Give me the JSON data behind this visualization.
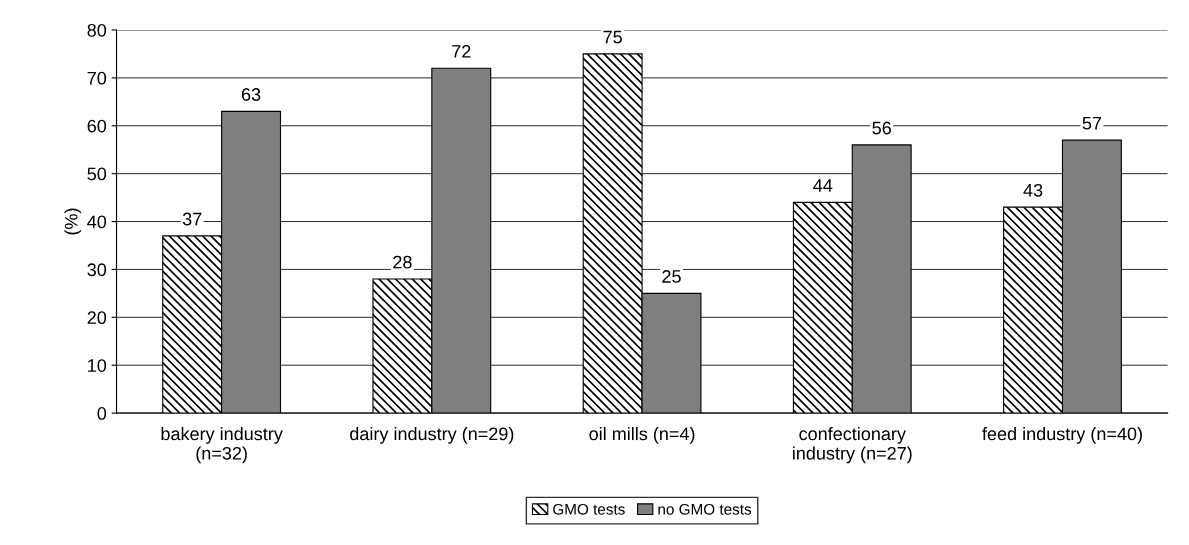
{
  "chart_data": {
    "type": "bar",
    "ylabel": "(%)",
    "categories": [
      "bakery industry\n(n=32)",
      "dairy industry (n=29)",
      "oil mills (n=4)",
      "confectionary\nindustry (n=27)",
      "feed industry (n=40)"
    ],
    "series": [
      {
        "name": "GMO tests",
        "color": "#000000",
        "values": [
          37,
          28,
          75,
          44,
          43
        ]
      },
      {
        "name": "no GMO tests",
        "color": "#7f7f7f",
        "values": [
          63,
          72,
          25,
          56,
          57
        ]
      }
    ],
    "ylim": [
      0,
      80
    ],
    "yticks": [
      0,
      10,
      20,
      30,
      40,
      50,
      60,
      70,
      80
    ],
    "grid": "y",
    "legend": "bottom",
    "data_labels": true
  }
}
